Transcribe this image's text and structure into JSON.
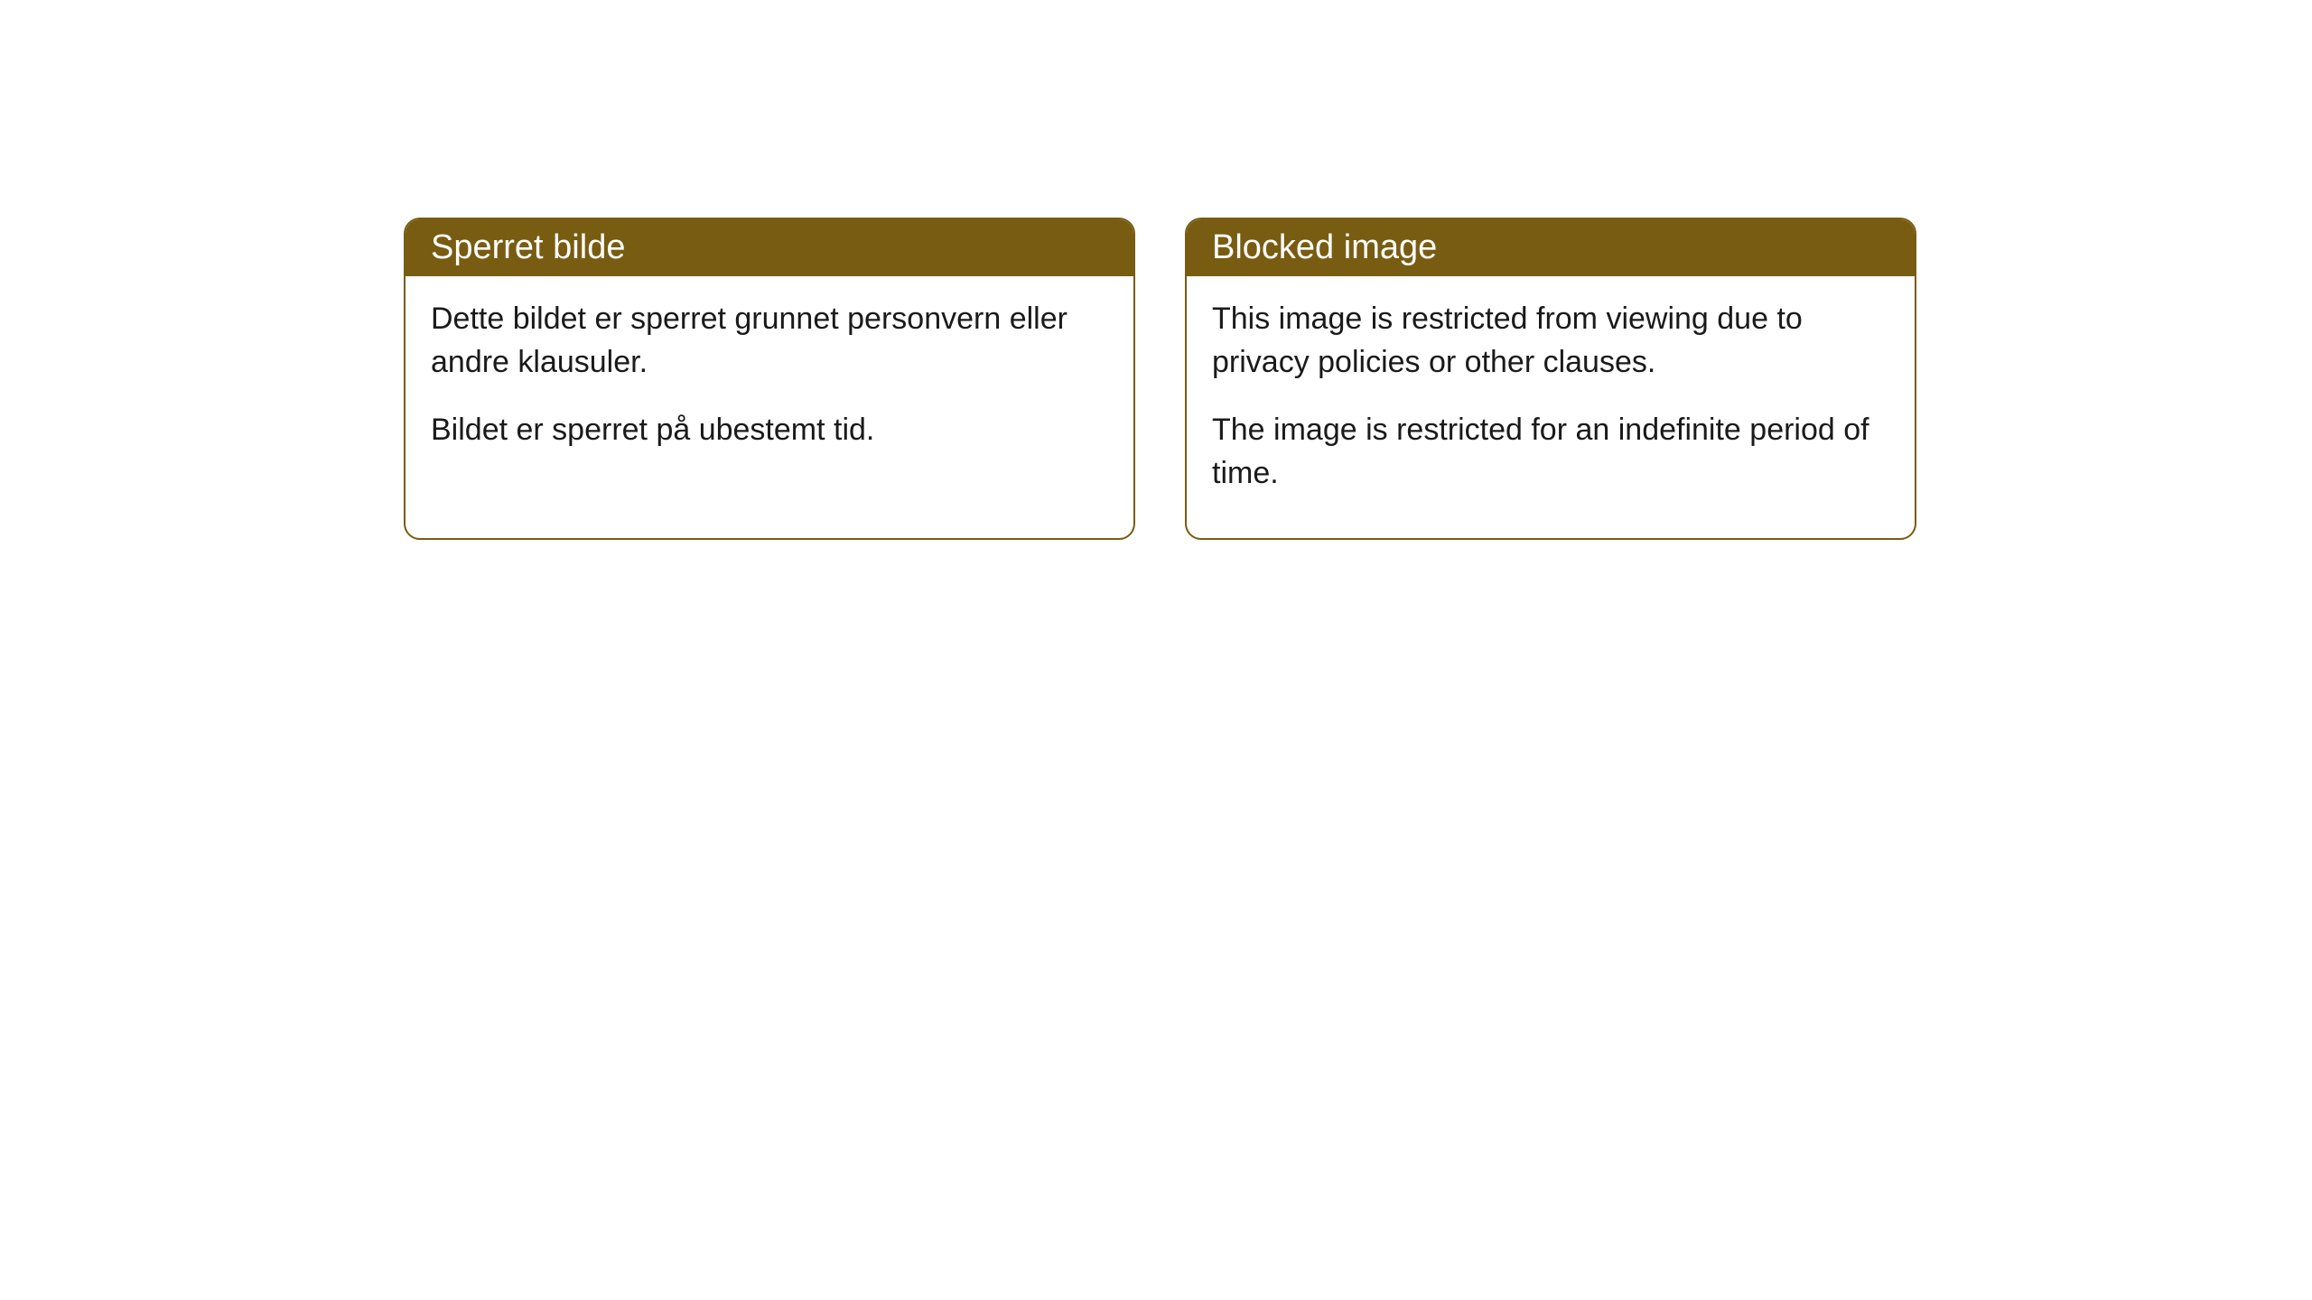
{
  "cards": [
    {
      "title": "Sperret bilde",
      "paragraph1": "Dette bildet er sperret grunnet personvern eller andre klausuler.",
      "paragraph2": "Bildet er sperret på ubestemt tid."
    },
    {
      "title": "Blocked image",
      "paragraph1": "This image is restricted from viewing due to privacy policies or other clauses.",
      "paragraph2": "The image is restricted for an indefinite period of time."
    }
  ],
  "style": {
    "header_bg_color": "#785c12",
    "header_text_color": "#ffffff",
    "border_color": "#785c12",
    "body_bg_color": "#ffffff",
    "body_text_color": "#1a1a1a",
    "border_radius": 18,
    "header_fontsize": 38,
    "body_fontsize": 34
  }
}
